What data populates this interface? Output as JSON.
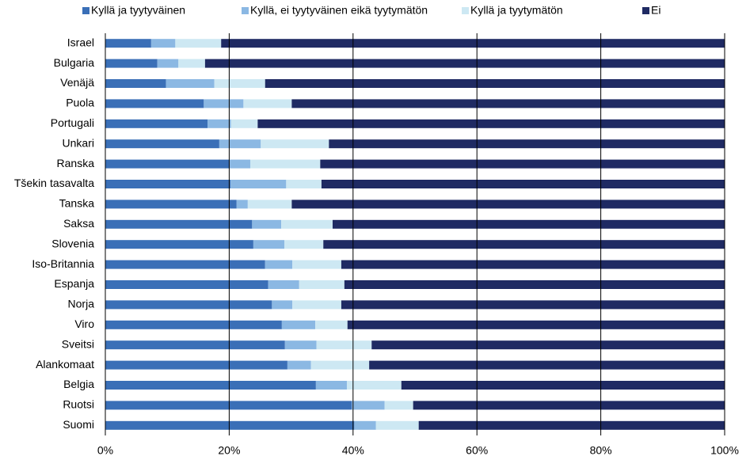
{
  "chart_data": {
    "type": "stacked_barh",
    "categories": [
      "Israel",
      "Bulgaria",
      "Venäjä",
      "Puola",
      "Portugali",
      "Unkari",
      "Ranska",
      "Tšekin tasavalta",
      "Tanska",
      "Saksa",
      "Slovenia",
      "Iso-Britannia",
      "Espanja",
      "Norja",
      "Viro",
      "Sveitsi",
      "Alankomaat",
      "Belgia",
      "Ruotsi",
      "Suomi"
    ],
    "series": [
      {
        "name": "Kyllä ja tyytyväinen",
        "color": "#3a6fb7",
        "values": [
          7.4,
          8.4,
          9.8,
          15.9,
          16.5,
          18.4,
          20.1,
          20.2,
          21.2,
          23.7,
          23.9,
          25.8,
          26.3,
          26.9,
          28.5,
          29.0,
          29.4,
          34.0,
          39.8,
          40.2
        ]
      },
      {
        "name": "Kyllä, ei tyytyväinen eikä tyytymätön",
        "color": "#8bb8e3",
        "values": [
          3.9,
          3.4,
          7.8,
          6.4,
          3.8,
          6.7,
          3.3,
          9.0,
          1.8,
          4.7,
          5.0,
          4.4,
          5.0,
          3.3,
          5.4,
          5.1,
          3.8,
          5.0,
          5.3,
          3.5
        ]
      },
      {
        "name": "Kyllä ja tyytymätön",
        "color": "#cde8f3",
        "values": [
          7.4,
          4.3,
          8.2,
          7.8,
          4.3,
          11.0,
          11.3,
          5.7,
          7.1,
          8.3,
          6.3,
          7.9,
          7.3,
          7.9,
          5.2,
          8.9,
          9.4,
          8.8,
          4.6,
          6.9
        ]
      },
      {
        "name": "Ei",
        "color": "#1f2a63",
        "values": [
          81.3,
          83.9,
          74.2,
          69.9,
          75.4,
          63.9,
          65.3,
          65.1,
          69.9,
          63.3,
          64.8,
          61.9,
          61.4,
          61.9,
          60.9,
          57.0,
          57.4,
          52.2,
          50.3,
          49.4
        ]
      }
    ],
    "xlim": [
      0,
      100
    ],
    "xticks": [
      {
        "value": 0,
        "label": "0%"
      },
      {
        "value": 20,
        "label": "20%"
      },
      {
        "value": 40,
        "label": "40%"
      },
      {
        "value": 60,
        "label": "60%"
      },
      {
        "value": 80,
        "label": "80%"
      },
      {
        "value": 100,
        "label": "100%"
      }
    ],
    "grid": true,
    "legend": "top"
  }
}
